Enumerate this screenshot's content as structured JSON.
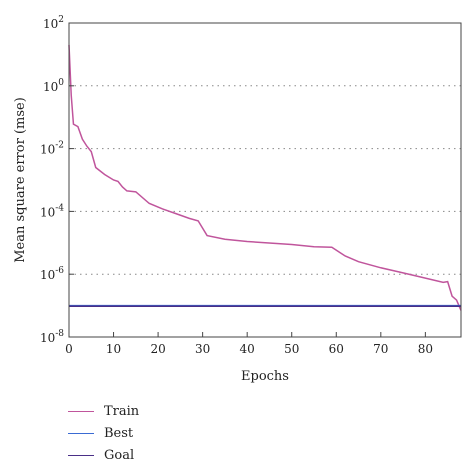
{
  "chart_data": {
    "type": "line",
    "xlabel": "Epochs",
    "ylabel": "Mean square error (mse)",
    "xlim": [
      0,
      88
    ],
    "ylim_log10": [
      -8,
      2
    ],
    "y_scale": "log",
    "x_ticks": [
      0,
      10,
      20,
      30,
      40,
      50,
      60,
      70,
      80
    ],
    "y_ticks": [
      {
        "exp": 2,
        "label": "10",
        "sup": "2"
      },
      {
        "exp": 0,
        "label": "10",
        "sup": "0"
      },
      {
        "exp": -2,
        "label": "10",
        "sup": "-2"
      },
      {
        "exp": -4,
        "label": "10",
        "sup": "-4"
      },
      {
        "exp": -6,
        "label": "10",
        "sup": "-6"
      },
      {
        "exp": -8,
        "label": "10",
        "sup": "-8"
      }
    ],
    "grid": "dotted horizontal at major y ticks",
    "legend_position": "below",
    "series": [
      {
        "name": "Train",
        "color": "#c0559c",
        "points": [
          [
            0,
            20
          ],
          [
            0.5,
            0.5
          ],
          [
            1,
            0.06
          ],
          [
            2,
            0.05
          ],
          [
            3,
            0.02
          ],
          [
            4,
            0.012
          ],
          [
            5,
            0.008
          ],
          [
            6,
            0.0025
          ],
          [
            8,
            0.0015
          ],
          [
            10,
            0.001
          ],
          [
            11,
            0.0009
          ],
          [
            12,
            0.0006
          ],
          [
            13,
            0.00045
          ],
          [
            15,
            0.00042
          ],
          [
            18,
            0.00018
          ],
          [
            21,
            0.00012
          ],
          [
            24,
            8.5e-05
          ],
          [
            27,
            6e-05
          ],
          [
            29,
            5e-05
          ],
          [
            31,
            1.7e-05
          ],
          [
            35,
            1.3e-05
          ],
          [
            40,
            1.1e-05
          ],
          [
            50,
            8.8e-06
          ],
          [
            55,
            7.5e-06
          ],
          [
            59,
            7.2e-06
          ],
          [
            62,
            3.8e-06
          ],
          [
            65,
            2.5e-06
          ],
          [
            70,
            1.6e-06
          ],
          [
            75,
            1.1e-06
          ],
          [
            80,
            7.5e-07
          ],
          [
            84,
            5.5e-07
          ],
          [
            85,
            5.8e-07
          ],
          [
            86,
            2e-07
          ],
          [
            87,
            1.5e-07
          ],
          [
            88,
            7e-08
          ]
        ]
      },
      {
        "name": "Best",
        "color": "#3a6bd3",
        "points": [
          [
            0,
            1e-07
          ],
          [
            88,
            1e-07
          ]
        ]
      },
      {
        "name": "Goal",
        "color": "#4a2f87",
        "points": [
          [
            0,
            9.5e-08
          ],
          [
            88,
            9.5e-08
          ]
        ]
      }
    ]
  },
  "legend": [
    {
      "label": "Train",
      "color": "#c0559c"
    },
    {
      "label": "Best",
      "color": "#3a6bd3"
    },
    {
      "label": "Goal",
      "color": "#4a2f87"
    }
  ]
}
